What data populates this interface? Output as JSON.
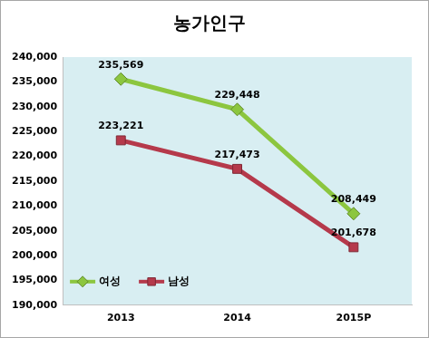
{
  "chart_data": {
    "type": "line",
    "title": "농가인구",
    "categories": [
      "2013",
      "2014",
      "2015P"
    ],
    "series": [
      {
        "name": "여성",
        "color": "#8cc63f",
        "marker": "diamond",
        "values": [
          235569,
          229448,
          208449
        ],
        "value_labels": [
          "235,569",
          "229,448",
          "208,449"
        ]
      },
      {
        "name": "남성",
        "color": "#b5394b",
        "marker": "square",
        "values": [
          223221,
          217473,
          201678
        ],
        "value_labels": [
          "223,221",
          "217,473",
          "201,678"
        ]
      }
    ],
    "ylim": [
      190000,
      240000
    ],
    "yticks": [
      {
        "value": 190000,
        "label": "190,000"
      },
      {
        "value": 195000,
        "label": "195,000"
      },
      {
        "value": 200000,
        "label": "200,000"
      },
      {
        "value": 205000,
        "label": "205,000"
      },
      {
        "value": 210000,
        "label": "210,000"
      },
      {
        "value": 215000,
        "label": "215,000"
      },
      {
        "value": 220000,
        "label": "220,000"
      },
      {
        "value": 225000,
        "label": "225,000"
      },
      {
        "value": 230000,
        "label": "230,000"
      },
      {
        "value": 235000,
        "label": "235,000"
      },
      {
        "value": 240000,
        "label": "240,000"
      }
    ],
    "grid": false,
    "legend": "lower left",
    "data_labels": true
  }
}
